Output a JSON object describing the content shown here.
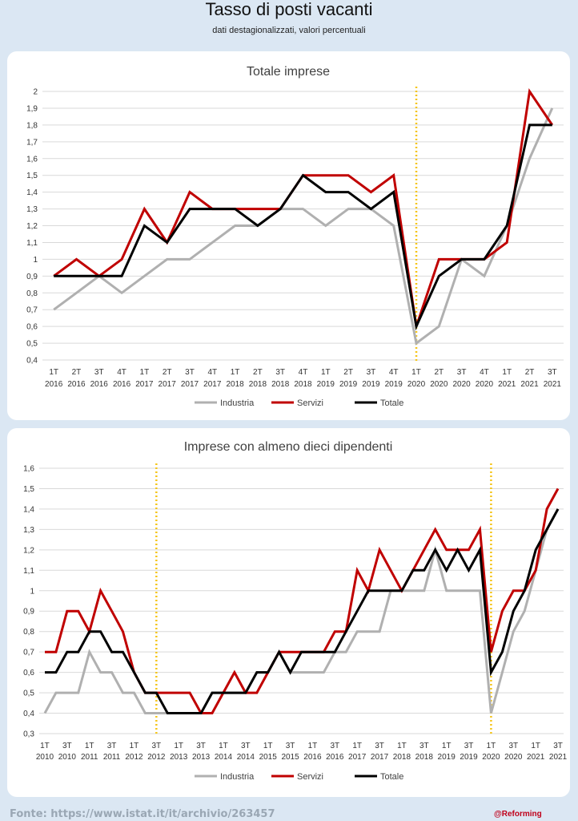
{
  "header": {
    "title": "Tasso di posti vacanti",
    "subtitle": "dati destagionalizzati, valori percentuali"
  },
  "footer": {
    "source": "Fonte: https://www.istat.it/it/archivio/263457",
    "brand": "@Reforming"
  },
  "colors": {
    "industria": "#b0b0b0",
    "servizi": "#c00000",
    "totale": "#000000",
    "marker": "#f5c518",
    "grid": "#d9d9d9"
  },
  "chart_data": [
    {
      "type": "line",
      "title": "Totale imprese",
      "x": [
        "1T 2016",
        "2T 2016",
        "3T 2016",
        "4T 2016",
        "1T 2017",
        "2T 2017",
        "3T 2017",
        "4T 2017",
        "1T 2018",
        "2T 2018",
        "3T 2018",
        "4T 2018",
        "1T 2019",
        "2T 2019",
        "3T 2019",
        "4T 2019",
        "1T 2020",
        "2T 2020",
        "3T 2020",
        "4T 2020",
        "1T 2021",
        "2T 2021",
        "3T 2021"
      ],
      "ylim": [
        0.4,
        2.0
      ],
      "yticks": [
        "0,4",
        "0,5",
        "0,6",
        "0,7",
        "0,8",
        "0,9",
        "1",
        "1,1",
        "1,2",
        "1,3",
        "1,4",
        "1,5",
        "1,6",
        "1,7",
        "1,8",
        "1,9",
        "2"
      ],
      "markers": [
        "1T 2020"
      ],
      "legend": "bottom",
      "grid": true,
      "series": [
        {
          "name": "Industria",
          "values": [
            0.7,
            0.8,
            0.9,
            0.8,
            0.9,
            1.0,
            1.0,
            1.1,
            1.2,
            1.2,
            1.3,
            1.3,
            1.2,
            1.3,
            1.3,
            1.2,
            0.5,
            0.6,
            1.0,
            0.9,
            1.2,
            1.6,
            1.9
          ]
        },
        {
          "name": "Servizi",
          "values": [
            0.9,
            1.0,
            0.9,
            1.0,
            1.3,
            1.1,
            1.4,
            1.3,
            1.3,
            1.3,
            1.3,
            1.5,
            1.5,
            1.5,
            1.4,
            1.5,
            0.6,
            1.0,
            1.0,
            1.0,
            1.1,
            2.0,
            1.8
          ]
        },
        {
          "name": "Totale",
          "values": [
            0.9,
            0.9,
            0.9,
            0.9,
            1.2,
            1.1,
            1.3,
            1.3,
            1.3,
            1.2,
            1.3,
            1.5,
            1.4,
            1.4,
            1.3,
            1.4,
            0.6,
            0.9,
            1.0,
            1.0,
            1.2,
            1.8,
            1.8
          ]
        }
      ]
    },
    {
      "type": "line",
      "title": "Imprese con almeno  dieci dipendenti",
      "x": [
        "1T 2010",
        "2T 2010",
        "3T 2010",
        "4T 2010",
        "1T 2011",
        "2T 2011",
        "3T 2011",
        "4T 2011",
        "1T 2012",
        "2T 2012",
        "3T 2012",
        "4T 2012",
        "1T 2013",
        "2T 2013",
        "3T 2013",
        "4T 2013",
        "1T 2014",
        "2T 2014",
        "3T 2014",
        "4T 2014",
        "1T 2015",
        "2T 2015",
        "3T 2015",
        "4T 2015",
        "1T 2016",
        "2T 2016",
        "3T 2016",
        "4T 2016",
        "1T 2017",
        "2T 2017",
        "3T 2017",
        "4T 2017",
        "1T 2018",
        "2T 2018",
        "3T 2018",
        "4T 2018",
        "1T 2019",
        "2T 2019",
        "3T 2019",
        "4T 2019",
        "1T 2020",
        "2T 2020",
        "3T 2020",
        "4T 2020",
        "1T 2021",
        "2T 2021",
        "3T 2021"
      ],
      "xtick_labels": [
        "1T 2010",
        "3T 2010",
        "1T 2011",
        "3T 2011",
        "1T 2012",
        "3T 2012",
        "1T 2013",
        "3T 2013",
        "1T 2014",
        "3T 2014",
        "1T 2015",
        "3T 2015",
        "1T 2016",
        "3T 2016",
        "1T 2017",
        "3T 2017",
        "1T 2018",
        "3T 2018",
        "1T 2019",
        "3T 2019",
        "1T 2020",
        "3T 2020",
        "1T 2021",
        "3T 2021"
      ],
      "ylim": [
        0.3,
        1.6
      ],
      "yticks": [
        "0,3",
        "0,4",
        "0,5",
        "0,6",
        "0,7",
        "0,8",
        "0,9",
        "1",
        "1,1",
        "1,2",
        "1,3",
        "1,4",
        "1,5",
        "1,6"
      ],
      "markers": [
        "3T 2012",
        "1T 2020"
      ],
      "legend": "bottom",
      "grid": true,
      "series": [
        {
          "name": "Industria",
          "values": [
            0.4,
            0.5,
            0.5,
            0.5,
            0.7,
            0.6,
            0.6,
            0.5,
            0.5,
            0.4,
            0.4,
            0.4,
            0.4,
            0.4,
            0.4,
            0.5,
            0.5,
            0.5,
            0.5,
            0.6,
            0.6,
            0.7,
            0.6,
            0.6,
            0.6,
            0.6,
            0.7,
            0.7,
            0.8,
            0.8,
            0.8,
            1.0,
            1.0,
            1.0,
            1.0,
            1.2,
            1.0,
            1.0,
            1.0,
            1.0,
            0.4,
            0.6,
            0.8,
            0.9,
            1.1,
            1.3,
            1.4
          ]
        },
        {
          "name": "Servizi",
          "values": [
            0.7,
            0.7,
            0.9,
            0.9,
            0.8,
            1.0,
            0.9,
            0.8,
            0.6,
            0.5,
            0.5,
            0.5,
            0.5,
            0.5,
            0.4,
            0.4,
            0.5,
            0.6,
            0.5,
            0.5,
            0.6,
            0.7,
            0.7,
            0.7,
            0.7,
            0.7,
            0.8,
            0.8,
            1.1,
            1.0,
            1.2,
            1.1,
            1.0,
            1.1,
            1.2,
            1.3,
            1.2,
            1.2,
            1.2,
            1.3,
            0.7,
            0.9,
            1.0,
            1.0,
            1.1,
            1.4,
            1.5
          ]
        },
        {
          "name": "Totale",
          "values": [
            0.6,
            0.6,
            0.7,
            0.7,
            0.8,
            0.8,
            0.7,
            0.7,
            0.6,
            0.5,
            0.5,
            0.4,
            0.4,
            0.4,
            0.4,
            0.5,
            0.5,
            0.5,
            0.5,
            0.6,
            0.6,
            0.7,
            0.6,
            0.7,
            0.7,
            0.7,
            0.7,
            0.8,
            0.9,
            1.0,
            1.0,
            1.0,
            1.0,
            1.1,
            1.1,
            1.2,
            1.1,
            1.2,
            1.1,
            1.2,
            0.6,
            0.7,
            0.9,
            1.0,
            1.2,
            1.3,
            1.4
          ]
        }
      ]
    }
  ]
}
